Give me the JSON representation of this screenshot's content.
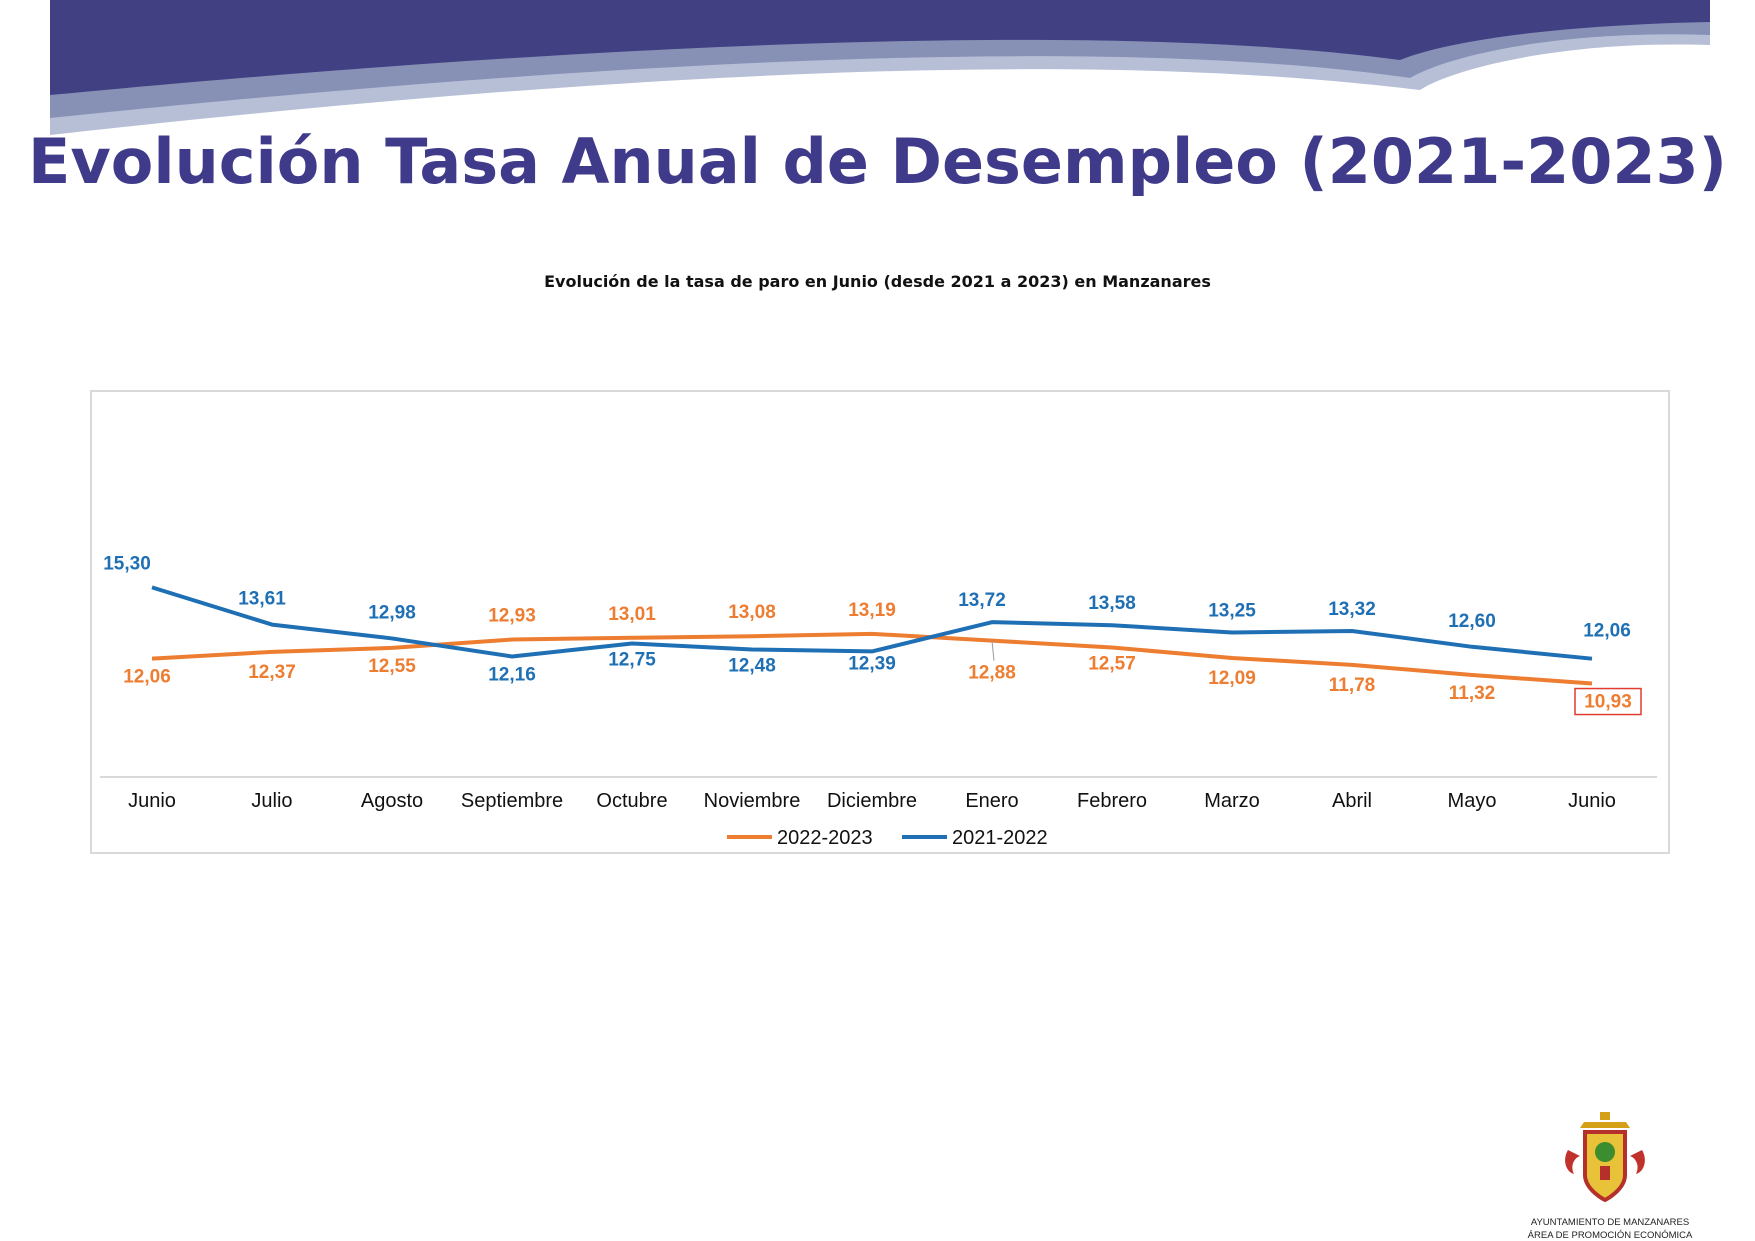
{
  "slide": {
    "title": "Evolución Tasa Anual de Desempleo (2021-2023)",
    "banner_color": "#3f3a8a",
    "title_color": "#3f3a8a"
  },
  "footer": {
    "logo_icon": "coat-of-arms-icon",
    "line1": "AYUNTAMIENTO DE MANZANARES",
    "line2": "ÁREA DE PROMOCIÓN ECONÓMICA"
  },
  "chart_data": {
    "type": "line",
    "title": "Evolución de la tasa de paro en Junio  (desde 2021 a 2023) en Manzanares",
    "xlabel": "",
    "ylabel": "",
    "ylim": [
      0,
      16
    ],
    "grid": false,
    "legend_position": "bottom",
    "categories": [
      "Junio",
      "Julio",
      "Agosto",
      "Septiembre",
      "Octubre",
      "Noviembre",
      "Diciembre",
      "Enero",
      "Febrero",
      "Marzo",
      "Abril",
      "Mayo",
      "Junio"
    ],
    "series": [
      {
        "name": "2022-2023",
        "color": "#ed7d31",
        "values": [
          12.06,
          12.37,
          12.55,
          12.93,
          13.01,
          13.08,
          13.19,
          12.88,
          12.57,
          12.09,
          11.78,
          11.32,
          10.93
        ],
        "labels": [
          "12,06",
          "12,37",
          "12,55",
          "12,93",
          "13,01",
          "13,08",
          "13,19",
          "12,88",
          "12,57",
          "12,09",
          "11,78",
          "11,32",
          "10,93"
        ],
        "highlighted_label": "10,93",
        "highlight_color": "#e03c31"
      },
      {
        "name": "2021-2022",
        "color": "#1f6fb4",
        "values": [
          15.3,
          13.61,
          12.98,
          12.16,
          12.75,
          12.48,
          12.39,
          13.72,
          13.58,
          13.25,
          13.32,
          12.6,
          12.06
        ],
        "labels": [
          "15,30",
          "13,61",
          "12,98",
          "12,16",
          "12,75",
          "12,48",
          "12,39",
          "13,72",
          "13,58",
          "13,25",
          "13,32",
          "12,60",
          "12,06"
        ]
      }
    ]
  }
}
